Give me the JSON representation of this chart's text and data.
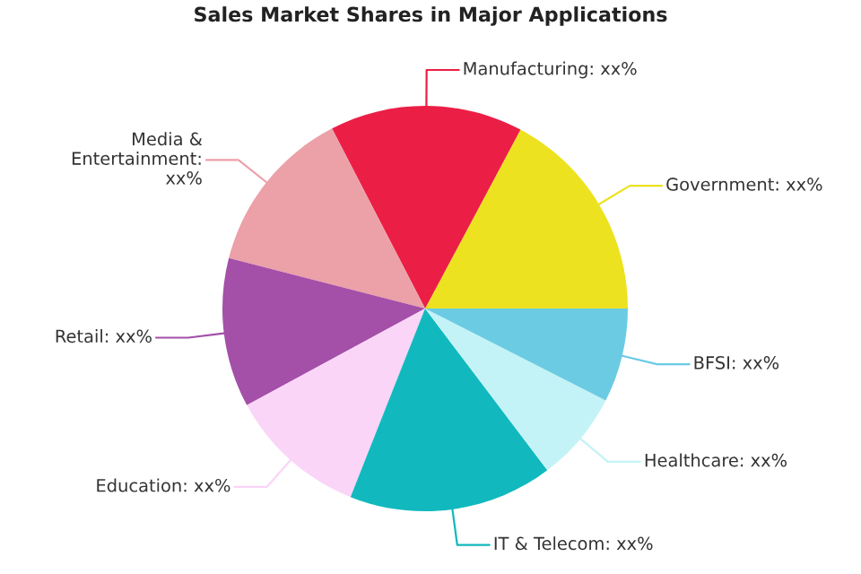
{
  "chart_data": {
    "type": "pie",
    "title": "Sales Market Shares in Major Applications",
    "categories": [
      "Government: xx%",
      "Manufacturing: xx%",
      "Media &\nEntertainment:\nxx%",
      "Retail: xx%",
      "Education: xx%",
      "IT & Telecom: xx%",
      "Healthcare: xx%",
      "BFSI: xx%"
    ],
    "values": [
      17.2,
      15.4,
      13.4,
      11.9,
      11.1,
      16.3,
      7.2,
      7.5
    ],
    "colors": [
      "#ede21f",
      "#eb1f45",
      "#eca0a8",
      "#a44fa8",
      "#fad5f8",
      "#11b9be",
      "#c3f3f6",
      "#6bcbe3"
    ],
    "legend": false
  }
}
